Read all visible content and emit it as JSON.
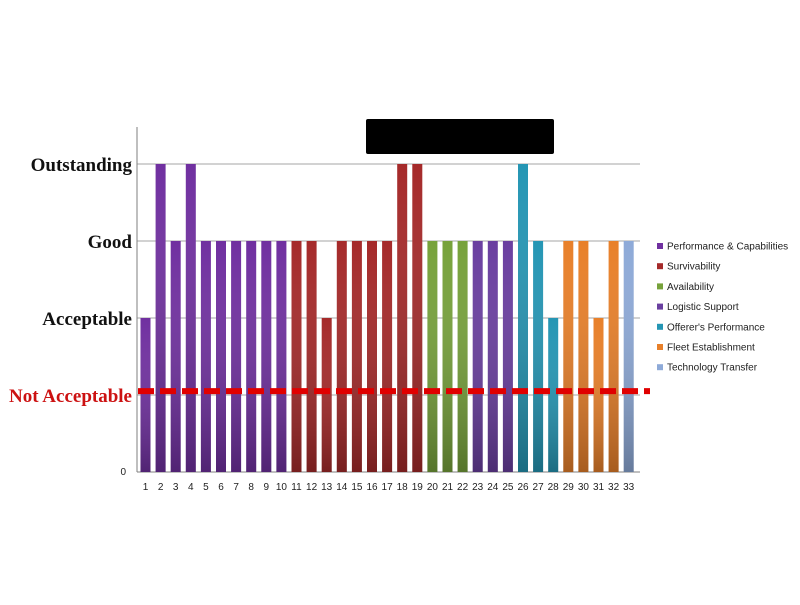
{
  "colors": {
    "threshold_line": "#e00000",
    "level_label": "#111111",
    "gridline": "#a6a6a6",
    "axis": "#7f7f7f",
    "redaction": "#000000"
  },
  "chart_data": {
    "type": "bar",
    "title": "",
    "xlabel": "",
    "ylabel": "",
    "ylim": [
      0,
      4
    ],
    "grid": true,
    "legend_position": "right",
    "y_levels": [
      {
        "value": 1,
        "label": "Not Acceptable",
        "color": "#cc1111",
        "threshold": true
      },
      {
        "value": 2,
        "label": "Acceptable",
        "color": "#111111"
      },
      {
        "value": 3,
        "label": "Good",
        "color": "#111111"
      },
      {
        "value": 4,
        "label": "Outstanding",
        "color": "#111111"
      }
    ],
    "y_tick_zero_label": "0",
    "threshold_value": 1.05,
    "categories": [
      "1",
      "2",
      "3",
      "4",
      "5",
      "6",
      "7",
      "8",
      "9",
      "10",
      "11",
      "12",
      "13",
      "14",
      "15",
      "16",
      "17",
      "18",
      "19",
      "20",
      "21",
      "22",
      "23",
      "24",
      "25",
      "26",
      "27",
      "28",
      "29",
      "30",
      "31",
      "32",
      "33"
    ],
    "values": [
      2,
      4,
      3,
      4,
      3,
      3,
      3,
      3,
      3,
      3,
      3,
      3,
      2,
      3,
      3,
      3,
      3,
      4,
      4,
      3,
      3,
      3,
      3,
      3,
      3,
      4,
      3,
      2,
      3,
      3,
      2,
      3,
      3
    ],
    "bar_series": [
      0,
      0,
      0,
      0,
      0,
      0,
      0,
      0,
      0,
      0,
      1,
      1,
      1,
      1,
      1,
      1,
      1,
      1,
      1,
      2,
      2,
      2,
      3,
      3,
      3,
      4,
      4,
      4,
      5,
      5,
      5,
      5,
      6
    ],
    "series": [
      {
        "name": "Performance & Capabilities",
        "color": "#7030a0"
      },
      {
        "name": "Survivability",
        "color": "#a52a2a"
      },
      {
        "name": "Availability",
        "color": "#77a23b"
      },
      {
        "name": "Logistic Support",
        "color": "#6a3fa0"
      },
      {
        "name": "Offerer's Performance",
        "color": "#2596b4"
      },
      {
        "name": "Fleet Establishment",
        "color": "#e8802a"
      },
      {
        "name": "Technology Transfer",
        "color": "#8eaad8"
      }
    ]
  }
}
